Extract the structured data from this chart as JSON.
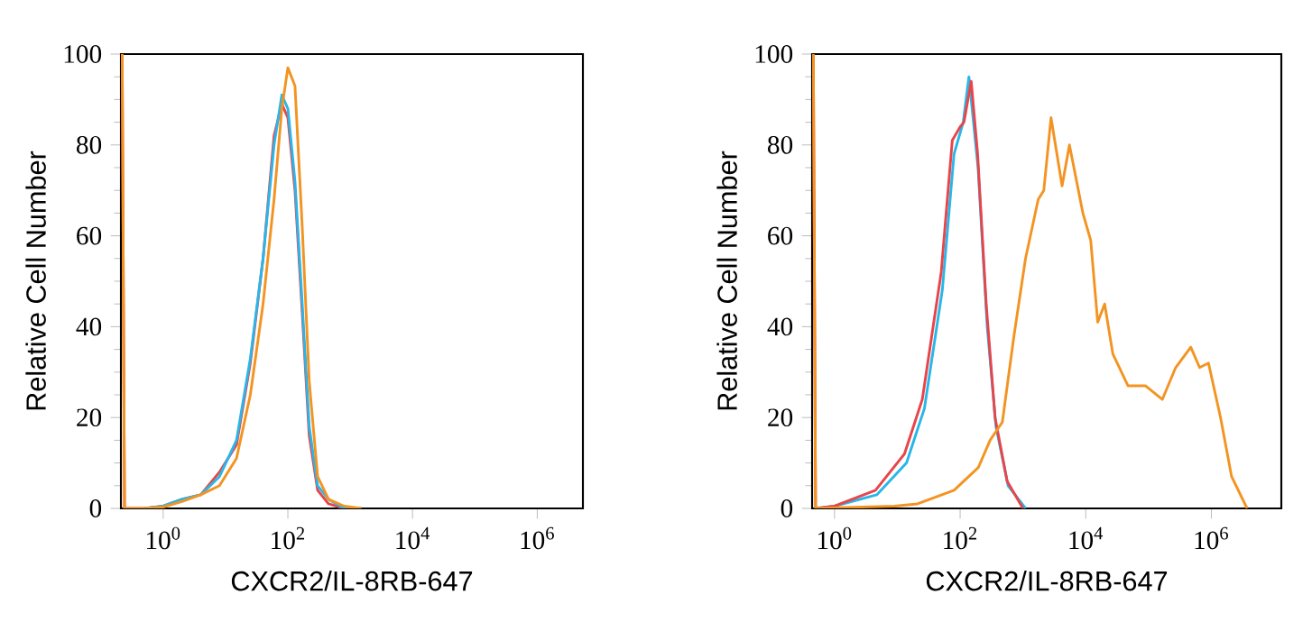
{
  "chart_data": [
    {
      "type": "line",
      "xlabel": "CXCR2/IL-8RB-647",
      "ylabel": "Relative Cell Number",
      "log": "x",
      "xlim": [
        0.21,
        5400000
      ],
      "xticks": [
        {
          "value": 1,
          "label": "10$^{0}$"
        },
        {
          "value": 100,
          "label": "10$^{2}$"
        },
        {
          "value": 10000,
          "label": "10$^{4}$"
        },
        {
          "value": 1000000,
          "label": "10$^{6}$"
        }
      ],
      "ylim": [
        0,
        100
      ],
      "yticks": [
        0,
        20,
        40,
        60,
        80,
        100
      ],
      "series": [
        {
          "color": "#e8454a",
          "x": [
            0.22,
            0.24,
            0.5,
            1,
            2,
            4,
            8,
            15,
            25,
            40,
            60,
            80,
            100,
            130,
            170,
            220,
            300,
            450,
            800,
            1500
          ],
          "values": [
            100,
            0,
            0,
            0.5,
            2,
            3,
            8,
            14,
            32,
            55,
            82,
            89,
            86,
            70,
            43,
            16,
            4,
            1,
            0,
            0
          ]
        },
        {
          "color": "#29b6e8",
          "x": [
            0.5,
            1,
            2,
            4,
            8,
            15,
            25,
            40,
            60,
            80,
            100,
            130,
            170,
            220,
            300,
            450,
            800,
            1500
          ],
          "values": [
            0,
            0.5,
            2,
            3,
            7,
            15,
            33,
            55,
            80,
            91,
            88,
            72,
            45,
            18,
            5,
            2,
            0,
            0
          ]
        },
        {
          "color": "#f39422",
          "x": [
            0.22,
            0.24,
            0.5,
            1,
            2,
            4,
            8,
            15,
            25,
            40,
            60,
            80,
            100,
            130,
            170,
            220,
            300,
            450,
            800,
            1500
          ],
          "values": [
            100,
            0,
            0,
            0.3,
            1.5,
            3,
            5,
            11,
            25,
            45,
            68,
            88,
            97,
            93,
            62,
            28,
            7,
            2,
            0.5,
            0
          ]
        }
      ]
    },
    {
      "type": "line",
      "xlabel": "CXCR2/IL-8RB-647",
      "ylabel": "Relative Cell Number",
      "log": "x",
      "xlim": [
        0.44,
        13000000
      ],
      "xticks": [
        {
          "value": 1,
          "label": "10$^{0}$"
        },
        {
          "value": 100,
          "label": "10$^{2}$"
        },
        {
          "value": 10000,
          "label": "10$^{4}$"
        },
        {
          "value": 1000000,
          "label": "10$^{6}$"
        }
      ],
      "ylim": [
        0,
        100
      ],
      "yticks": [
        0,
        20,
        40,
        60,
        80,
        100
      ],
      "series": [
        {
          "color": "#29b6e8",
          "x": [
            0.5,
            1,
            4.7,
            14,
            27,
            52,
            80,
            112,
            138,
            193,
            270,
            372,
            580,
            1100
          ],
          "values": [
            0,
            0.5,
            3,
            10,
            22,
            48,
            78,
            85,
            95,
            75,
            40,
            18,
            5,
            0
          ]
        },
        {
          "color": "#e8454a",
          "x": [
            0.46,
            0.5,
            1,
            4.5,
            13,
            25,
            50,
            75,
            100,
            115,
            150,
            190,
            260,
            360,
            560,
            1000
          ],
          "values": [
            100,
            0,
            0.5,
            4,
            12,
            24,
            52,
            81,
            84,
            85,
            94,
            78,
            45,
            20,
            6,
            0
          ]
        },
        {
          "color": "#f39422",
          "x": [
            0.46,
            0.5,
            9,
            21,
            80,
            195,
            300,
            470,
            720,
            1100,
            1750,
            2150,
            2800,
            4200,
            5500,
            9000,
            12000,
            15500,
            20000,
            27000,
            47000,
            89000,
            166000,
            270000,
            470000,
            650000,
            900000,
            1400000,
            2100000,
            3700000
          ],
          "values": [
            100,
            0,
            0.5,
            1,
            4,
            9,
            15,
            19,
            38,
            55,
            68,
            70,
            86,
            71,
            80,
            65,
            59,
            41,
            45,
            34,
            27,
            27,
            24,
            31,
            35.5,
            31,
            32,
            20,
            7,
            0
          ]
        }
      ]
    }
  ]
}
